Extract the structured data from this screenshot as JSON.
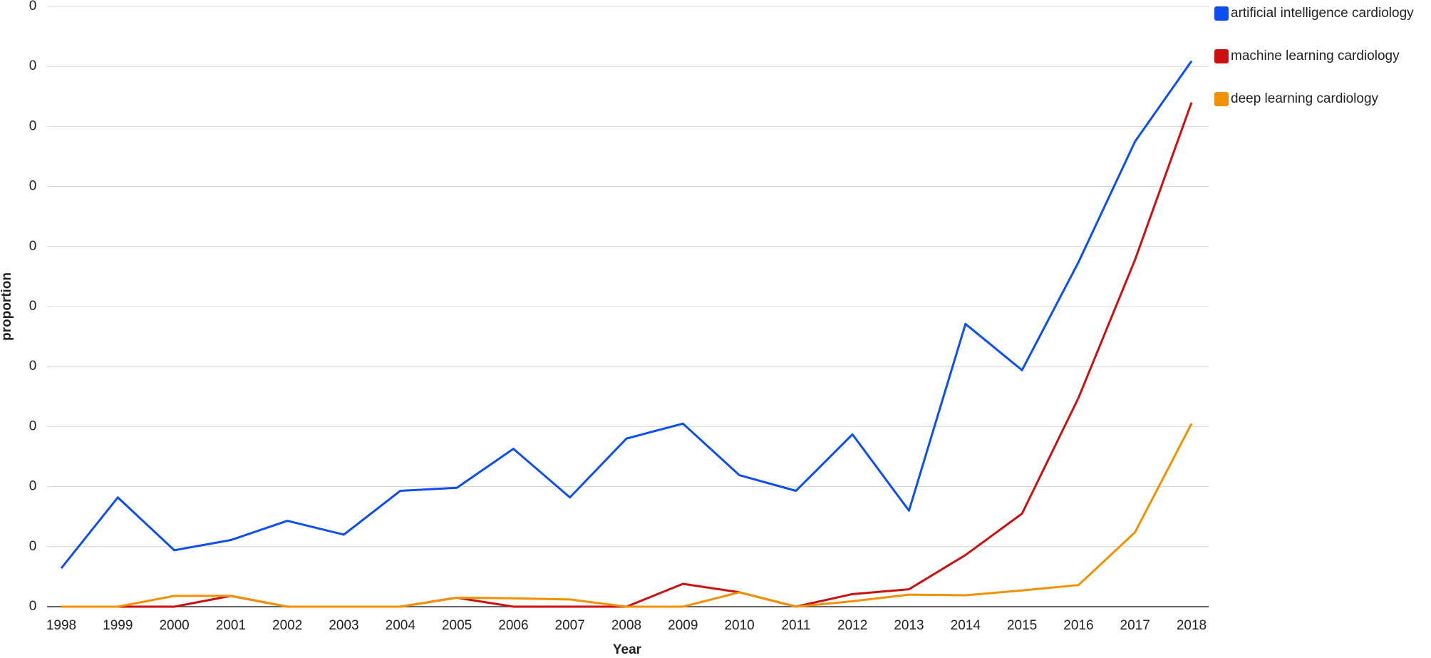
{
  "chart_data": {
    "type": "line",
    "x_label": "Year",
    "y_label": "proportion",
    "categories": [
      "1998",
      "1999",
      "2000",
      "2001",
      "2002",
      "2003",
      "2004",
      "2005",
      "2006",
      "2007",
      "2008",
      "2009",
      "2010",
      "2011",
      "2012",
      "2013",
      "2014",
      "2015",
      "2016",
      "2017",
      "2018"
    ],
    "series": [
      {
        "name": "artificial intelligence cardiology",
        "color": "#0b4ff0",
        "values": [
          0.0064,
          0.0182,
          0.0094,
          0.0111,
          0.0143,
          0.012,
          0.0193,
          0.0198,
          0.0263,
          0.0182,
          0.028,
          0.0305,
          0.0219,
          0.0193,
          0.0287,
          0.016,
          0.0471,
          0.0394,
          0.0574,
          0.0775,
          0.0909
        ]
      },
      {
        "name": "machine learning cardiology",
        "color": "#cc1010",
        "values": [
          0,
          0,
          0,
          0.0018,
          0,
          0,
          0,
          0.0015,
          0,
          0,
          0,
          0.0038,
          0.0024,
          0,
          0.0021,
          0.0029,
          0.0086,
          0.0155,
          0.0348,
          0.0578,
          0.084
        ]
      },
      {
        "name": "deep learning cardiology",
        "color": "#f29100",
        "values": [
          0,
          0,
          0.0018,
          0.0018,
          0,
          0,
          0,
          0.0015,
          0.0014,
          0.0012,
          0,
          0,
          0.0024,
          0,
          0.0009,
          0.002,
          0.0019,
          0.0027,
          0.0036,
          0.0124,
          0.0305
        ]
      }
    ],
    "ylim": [
      0,
      0.1
    ],
    "yticks": [
      {
        "value": 0,
        "label": "0"
      },
      {
        "value": 0.01,
        "label": "0"
      },
      {
        "value": 0.02,
        "label": "0"
      },
      {
        "value": 0.03,
        "label": "0"
      },
      {
        "value": 0.04,
        "label": "0"
      },
      {
        "value": 0.05,
        "label": "0"
      },
      {
        "value": 0.06,
        "label": "0"
      },
      {
        "value": 0.07,
        "label": "0"
      },
      {
        "value": 0.08,
        "label": "0"
      },
      {
        "value": 0.09,
        "label": "0"
      },
      {
        "value": 0.1,
        "label": "0"
      }
    ],
    "grid": true,
    "legend": "top-right"
  }
}
